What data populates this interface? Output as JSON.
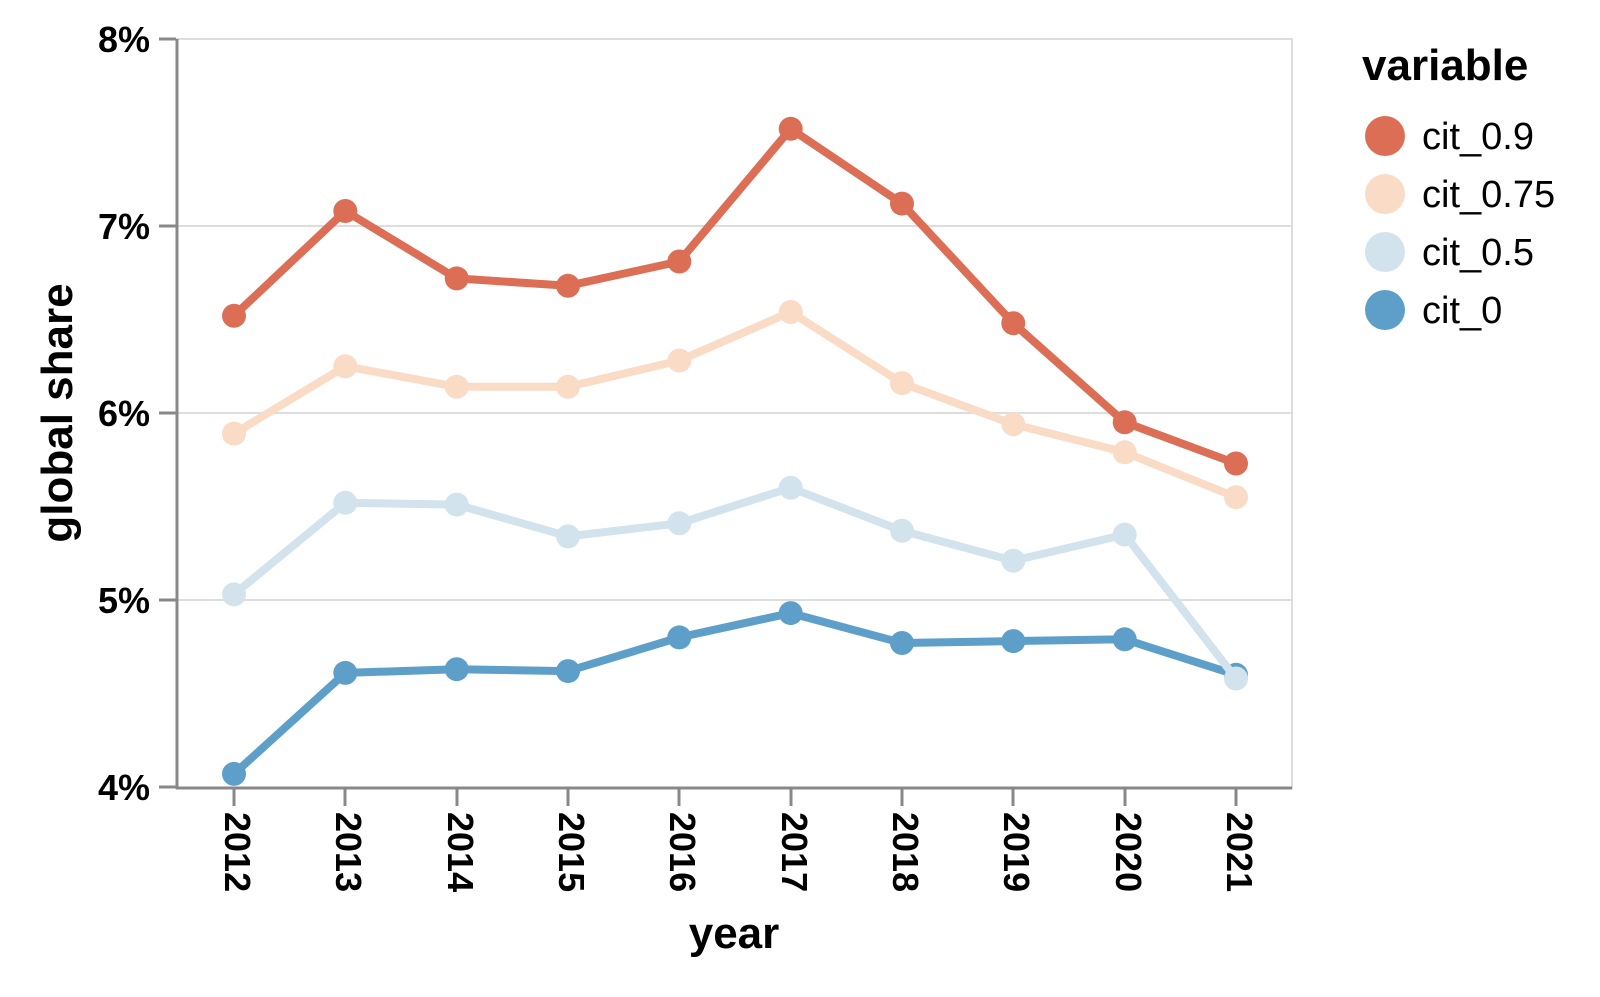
{
  "chart_data": {
    "type": "line",
    "title": "",
    "x": [
      "2012",
      "2013",
      "2014",
      "2015",
      "2016",
      "2017",
      "2018",
      "2019",
      "2020",
      "2021"
    ],
    "xlabel": "year",
    "ylabel": "global share",
    "ylim": [
      4,
      8
    ],
    "yticks": [
      "4%",
      "5%",
      "6%",
      "7%",
      "8%"
    ],
    "ytick_values": [
      4,
      5,
      6,
      7,
      8
    ],
    "grid": true,
    "legend_position": "right",
    "legend_title": "variable",
    "series": [
      {
        "name": "cit_0.9",
        "color": "#dd6e56",
        "values": [
          6.52,
          7.08,
          6.72,
          6.68,
          6.81,
          7.52,
          7.12,
          6.48,
          5.95,
          5.73
        ]
      },
      {
        "name": "cit_0.75",
        "color": "#fadbc6",
        "values": [
          5.89,
          6.25,
          6.14,
          6.14,
          6.28,
          6.54,
          6.16,
          5.94,
          5.79,
          5.55
        ]
      },
      {
        "name": "cit_0.5",
        "color": "#d2e3ee",
        "values": [
          5.03,
          5.52,
          5.51,
          5.34,
          5.41,
          5.6,
          5.37,
          5.21,
          5.35,
          4.58
        ]
      },
      {
        "name": "cit_0",
        "color": "#5e9fc9",
        "values": [
          4.07,
          4.61,
          4.63,
          4.62,
          4.8,
          4.93,
          4.77,
          4.78,
          4.79,
          4.6
        ]
      }
    ],
    "axis_colors": {
      "grid": "#dddddd",
      "domain": "#888888",
      "label": "#000000"
    }
  }
}
